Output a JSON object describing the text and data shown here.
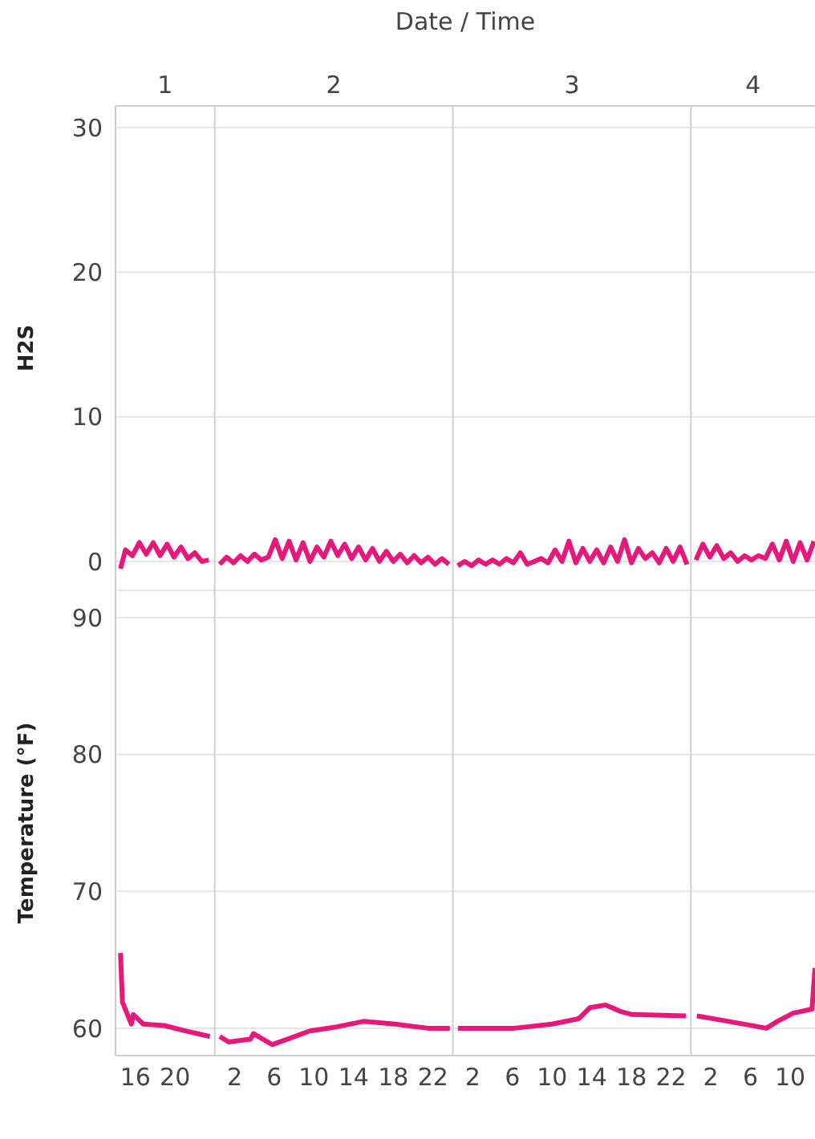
{
  "chart_data": [
    {
      "type": "line",
      "ylabel": "H2S",
      "x2label": "Date / Time",
      "x": [
        "--01-01T14:30",
        "--01-01T15:00",
        "--01-01T15:42",
        "--01-01T16:24",
        "--01-01T17:06",
        "--01-01T17:48",
        "--01-01T18:30",
        "--01-01T19:12",
        "--01-01T19:54",
        "--01-01T20:36",
        "--01-01T21:18",
        "--01-01T22:00",
        "--01-01T22:42",
        "--01-01T23:24",
        "--01-02T00:00",
        "--01-02T00:30",
        "--01-02T01:12",
        "--01-02T01:54",
        "--01-02T02:36",
        "--01-02T03:18",
        "--01-02T04:00",
        "--01-02T04:42",
        "--01-02T05:24",
        "--01-02T06:06",
        "--01-02T06:48",
        "--01-02T07:30",
        "--01-02T08:12",
        "--01-02T08:54",
        "--01-02T09:36",
        "--01-02T10:18",
        "--01-02T11:00",
        "--01-02T11:42",
        "--01-02T12:24",
        "--01-02T13:06",
        "--01-02T13:48",
        "--01-02T14:30",
        "--01-02T15:12",
        "--01-02T15:54",
        "--01-02T16:36",
        "--01-02T17:18",
        "--01-02T18:00",
        "--01-02T18:42",
        "--01-02T19:24",
        "--01-02T20:06",
        "--01-02T20:48",
        "--01-02T21:30",
        "--01-02T22:12",
        "--01-02T22:54",
        "--01-02T23:36",
        "--01-03T00:00",
        "--01-03T00:30",
        "--01-03T01:12",
        "--01-03T01:54",
        "--01-03T02:36",
        "--01-03T03:18",
        "--01-03T04:00",
        "--01-03T04:42",
        "--01-03T05:24",
        "--01-03T06:06",
        "--01-03T06:48",
        "--01-03T07:30",
        "--01-03T08:12",
        "--01-03T08:54",
        "--01-03T09:36",
        "--01-03T10:18",
        "--01-03T11:00",
        "--01-03T11:42",
        "--01-03T12:24",
        "--01-03T13:06",
        "--01-03T13:48",
        "--01-03T14:30",
        "--01-03T15:12",
        "--01-03T15:54",
        "--01-03T16:36",
        "--01-03T17:18",
        "--01-03T18:00",
        "--01-03T18:42",
        "--01-03T19:24",
        "--01-03T20:06",
        "--01-03T20:48",
        "--01-03T21:30",
        "--01-03T22:12",
        "--01-03T22:54",
        "--01-03T23:36",
        "--01-04T00:00",
        "--01-04T00:30",
        "--01-04T01:12",
        "--01-04T01:54",
        "--01-04T02:36",
        "--01-04T03:18",
        "--01-04T04:00",
        "--01-04T04:42",
        "--01-04T05:24",
        "--01-04T06:06",
        "--01-04T06:48",
        "--01-04T07:30",
        "--01-04T08:12",
        "--01-04T08:54",
        "--01-04T09:36",
        "--01-04T10:18",
        "--01-04T11:00",
        "--01-04T11:42",
        "--01-04T12:24"
      ],
      "series": [
        {
          "color": "#e8177b",
          "values": [
            -0.5,
            0.8,
            0.4,
            1.3,
            0.5,
            1.3,
            0.4,
            1.2,
            0.3,
            1.0,
            0.2,
            0.6,
            0.0,
            0.1,
            null,
            -0.2,
            0.3,
            -0.1,
            0.4,
            0.0,
            0.5,
            0.1,
            0.3,
            1.5,
            0.2,
            1.4,
            0.1,
            1.3,
            0.0,
            1.0,
            0.3,
            1.4,
            0.4,
            1.2,
            0.2,
            1.0,
            0.1,
            0.9,
            0.0,
            0.7,
            0.0,
            0.5,
            -0.1,
            0.4,
            -0.1,
            0.3,
            -0.2,
            0.2,
            -0.2,
            null,
            -0.3,
            0.0,
            -0.3,
            0.1,
            -0.2,
            0.1,
            -0.2,
            0.2,
            -0.1,
            0.6,
            -0.2,
            0.0,
            0.2,
            -0.1,
            0.8,
            0.0,
            1.4,
            -0.1,
            0.9,
            0.0,
            0.8,
            -0.1,
            1.0,
            0.0,
            1.5,
            -0.1,
            0.9,
            0.2,
            0.6,
            -0.1,
            0.9,
            0.0,
            1.0,
            -0.2,
            null,
            0.1,
            1.2,
            0.3,
            1.1,
            0.2,
            0.6,
            0.0,
            0.4,
            0.1,
            0.4,
            0.2,
            1.2,
            0.1,
            1.4,
            0.0,
            1.3,
            0.1,
            1.4
          ]
        }
      ],
      "xlim": [
        "--01-01T14:00",
        "--01-04T12:30"
      ],
      "x2lim": [
        "--01-01T14:00",
        "--01-04T12:30"
      ],
      "x2ticks": [
        {
          "value": "--01-01T19:00",
          "label": "1"
        },
        {
          "value": "--01-02T12:00",
          "label": "2"
        },
        {
          "value": "--01-03T12:00",
          "label": "3"
        },
        {
          "value": "--01-04T06:15",
          "label": "4"
        }
      ],
      "ylim": [
        -2,
        31.5
      ],
      "yticks": [
        0,
        10,
        20,
        30
      ],
      "ref_lines": [
        {
          "axis": "x",
          "value": "--01-02T00:00",
          "color": "#d0d0d0"
        },
        {
          "axis": "x",
          "value": "--01-03T00:00",
          "color": "#d0d0d0"
        },
        {
          "axis": "x",
          "value": "--01-04T00:00",
          "color": "#d0d0d0"
        }
      ],
      "grid": "y",
      "legend": false
    },
    {
      "type": "line",
      "ylabel": "Temperature (°F)",
      "x": [
        "--01-01T14:30",
        "--01-01T14:42",
        "--01-01T15:36",
        "--01-01T15:48",
        "--01-01T16:48",
        "--01-01T18:54",
        "--01-01T21:06",
        "--01-01T23:30",
        "--01-02T00:00",
        "--01-02T00:30",
        "--01-02T01:24",
        "--01-02T03:36",
        "--01-02T03:54",
        "--01-02T05:48",
        "--01-02T09:36",
        "--01-02T12:18",
        "--01-02T15:00",
        "--01-02T18:12",
        "--01-02T21:30",
        "--01-02T23:42",
        "--01-03T00:00",
        "--01-03T00:30",
        "--01-03T06:12",
        "--01-03T10:00",
        "--01-03T12:42",
        "--01-03T13:48",
        "--01-03T15:24",
        "--01-03T17:00",
        "--01-03T18:06",
        "--01-03T23:30",
        "--01-04T00:00",
        "--01-04T00:36",
        "--01-04T03:48",
        "--01-04T07:36",
        "--01-04T08:42",
        "--01-04T10:18",
        "--01-04T12:12",
        "--01-04T12:30"
      ],
      "series": [
        {
          "color": "#e8177b",
          "values": [
            65.5,
            61.9,
            60.3,
            61.0,
            60.3,
            60.2,
            59.8,
            59.4,
            null,
            59.4,
            59.0,
            59.2,
            59.6,
            58.8,
            59.8,
            60.1,
            60.5,
            60.3,
            60.0,
            60.0,
            null,
            60.0,
            60.0,
            60.3,
            60.7,
            61.5,
            61.7,
            61.2,
            61.0,
            60.9,
            null,
            60.9,
            60.5,
            60.0,
            60.5,
            61.1,
            61.4,
            64.4
          ]
        }
      ],
      "xlim": [
        "--01-01T14:00",
        "--01-04T12:30"
      ],
      "xticks": [
        {
          "value": "--01-01T16:00",
          "label": "16"
        },
        {
          "value": "--01-01T20:00",
          "label": "20"
        },
        {
          "value": "--01-02T02:00",
          "label": "2"
        },
        {
          "value": "--01-02T06:00",
          "label": "6"
        },
        {
          "value": "--01-02T10:00",
          "label": "10"
        },
        {
          "value": "--01-02T14:00",
          "label": "14"
        },
        {
          "value": "--01-02T18:00",
          "label": "18"
        },
        {
          "value": "--01-02T22:00",
          "label": "22"
        },
        {
          "value": "--01-03T02:00",
          "label": "2"
        },
        {
          "value": "--01-03T06:00",
          "label": "6"
        },
        {
          "value": "--01-03T10:00",
          "label": "10"
        },
        {
          "value": "--01-03T14:00",
          "label": "14"
        },
        {
          "value": "--01-03T18:00",
          "label": "18"
        },
        {
          "value": "--01-03T22:00",
          "label": "22"
        },
        {
          "value": "--01-04T02:00",
          "label": "2"
        },
        {
          "value": "--01-04T06:00",
          "label": "6"
        },
        {
          "value": "--01-04T10:00",
          "label": "10"
        }
      ],
      "ylim": [
        58,
        92
      ],
      "yticks": [
        60,
        70,
        80,
        90
      ],
      "ref_lines": [
        {
          "axis": "x",
          "value": "--01-02T00:00",
          "color": "#d0d0d0"
        },
        {
          "axis": "x",
          "value": "--01-03T00:00",
          "color": "#d0d0d0"
        },
        {
          "axis": "x",
          "value": "--01-04T00:00",
          "color": "#d0d0d0"
        }
      ],
      "grid": "y",
      "legend": false
    }
  ]
}
